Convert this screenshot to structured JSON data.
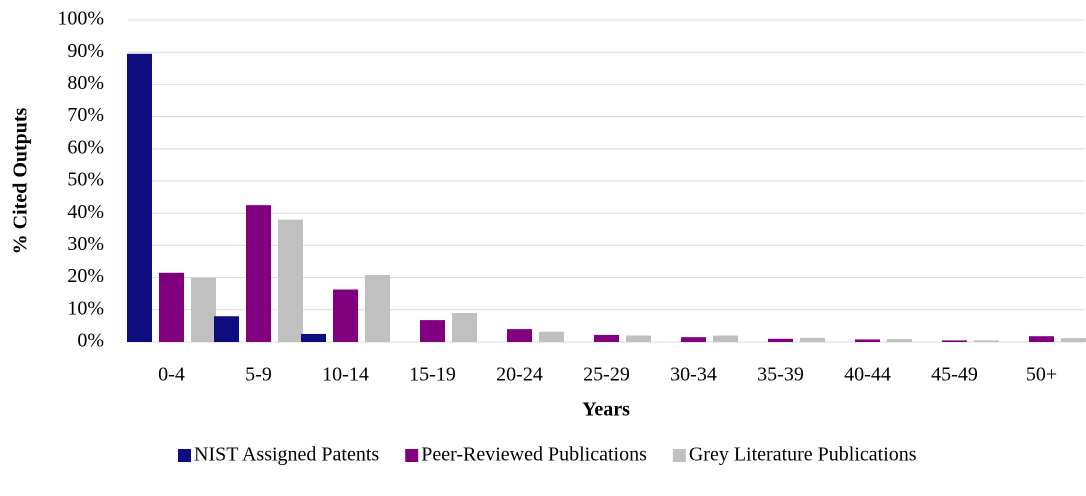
{
  "chart_data": {
    "type": "bar",
    "y_label": "% Cited Outputs",
    "x_label": "Years",
    "categories": [
      "0-4",
      "5-9",
      "10-14",
      "15-19",
      "20-24",
      "25-29",
      "30-34",
      "35-39",
      "40-44",
      "45-49",
      "50+"
    ],
    "series": [
      {
        "name": "NIST Assigned Patents",
        "color": "#0d0d80",
        "values": [
          89.5,
          8,
          2.5,
          0,
          0,
          0,
          0,
          0,
          0,
          0,
          0
        ]
      },
      {
        "name": "Peer-Reviewed Publications",
        "color": "#800080",
        "values": [
          21.5,
          42.5,
          16.3,
          6.8,
          4,
          2.2,
          1.5,
          1,
          0.8,
          0.5,
          1.8
        ]
      },
      {
        "name": "Grey Literature Publications",
        "color": "#c0c0c0",
        "values": [
          20,
          38,
          20.8,
          9,
          3.2,
          2,
          2,
          1.3,
          0.9,
          0.5,
          1.2
        ]
      }
    ],
    "ylim": [
      0,
      100
    ],
    "yticks": [
      {
        "value": 0,
        "label": "0%"
      },
      {
        "value": 10,
        "label": "10%"
      },
      {
        "value": 20,
        "label": "20%"
      },
      {
        "value": 30,
        "label": "30%"
      },
      {
        "value": 40,
        "label": "40%"
      },
      {
        "value": 50,
        "label": "50%"
      },
      {
        "value": 60,
        "label": "60%"
      },
      {
        "value": 70,
        "label": "70%"
      },
      {
        "value": 80,
        "label": "80%"
      },
      {
        "value": 90,
        "label": "90%"
      },
      {
        "value": 100,
        "label": "100%"
      }
    ],
    "grid": true,
    "legend": "bottom"
  }
}
